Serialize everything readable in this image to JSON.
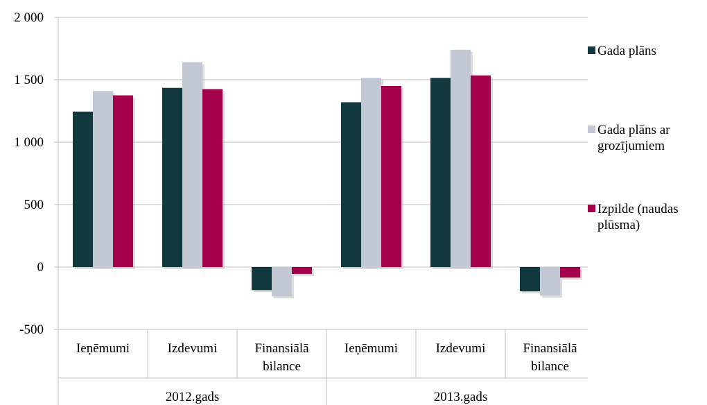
{
  "chart_data": {
    "type": "bar",
    "groups": [
      {
        "label": "2012.gads",
        "categories": [
          "Ieņēmumi",
          "Izdevumi",
          "Finansiālā bilance"
        ]
      },
      {
        "label": "2013.gads",
        "categories": [
          "Ieņēmumi",
          "Izdevumi",
          "Finansiālā bilance"
        ]
      }
    ],
    "series": [
      {
        "name": "Gada plāns",
        "color": "#12393d",
        "values": [
          1245,
          1435,
          -185,
          1320,
          1515,
          -195
        ]
      },
      {
        "name": "Gada plāns ar grozījumiem",
        "color": "#c3c9d4",
        "values": [
          1410,
          1640,
          -235,
          1515,
          1740,
          -230
        ]
      },
      {
        "name": "Izpilde (naudas plūsma)",
        "color": "#a5004c",
        "values": [
          1375,
          1425,
          -55,
          1450,
          1535,
          -85
        ]
      }
    ],
    "yticks": [
      "2 000",
      "1 500",
      "1 000",
      "500",
      "0",
      "-500"
    ],
    "ylim": [
      -500,
      2000
    ],
    "grid": true,
    "legend_position": "right"
  }
}
